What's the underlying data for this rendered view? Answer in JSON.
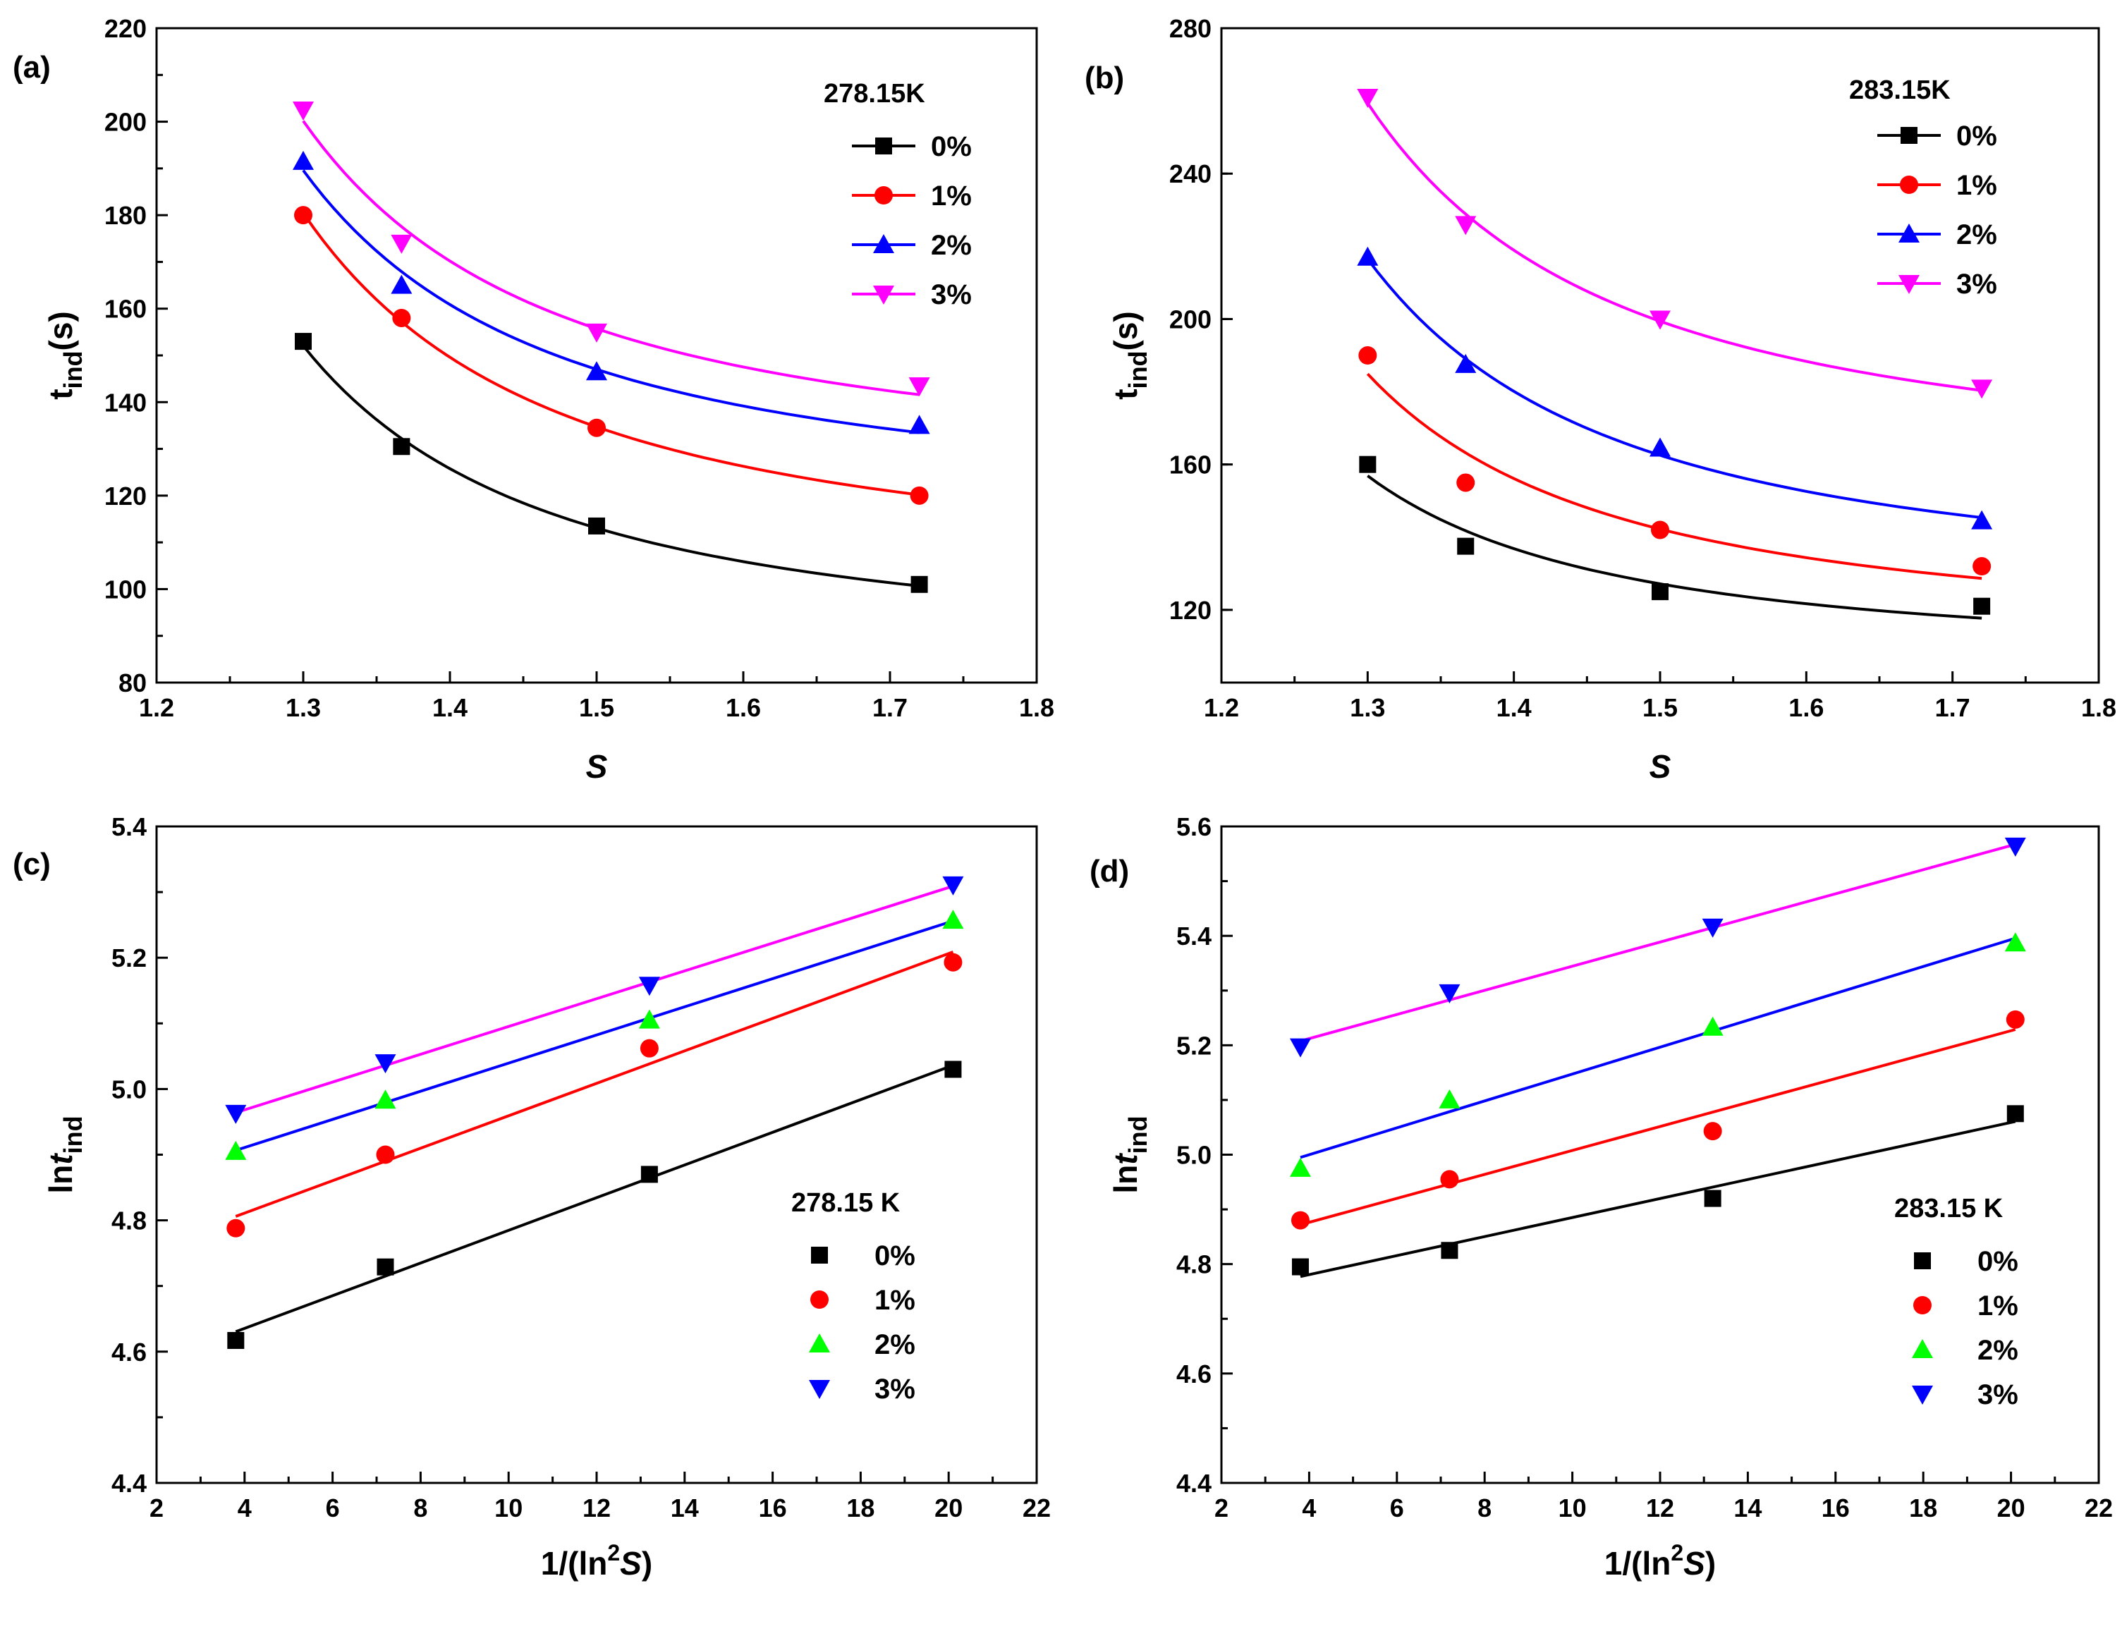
{
  "figure": {
    "colors": {
      "0%": "#000000",
      "1%": "#ff0000",
      "2%": "#0000ff",
      "3%": "#ff00ff"
    },
    "colors_scatter": {
      "0%": "#000000",
      "1%": "#ff0000",
      "2%": "#00ff00",
      "3%": "#0000ff"
    }
  },
  "chart_data": [
    {
      "panel": "(a)",
      "type": "scatter",
      "xlabel": "S",
      "ylabel": "t_ind(s)",
      "xlim": [
        1.2,
        1.8
      ],
      "ylim": [
        80,
        220
      ],
      "xticks": [
        "1.2",
        "1.3",
        "1.4",
        "1.5",
        "1.6",
        "1.7",
        "1.8"
      ],
      "yticks": [
        "80",
        "100",
        "120",
        "140",
        "160",
        "180",
        "200",
        "220"
      ],
      "legend_title": "278.15K",
      "legend_position": "top-right",
      "fit": "curve",
      "series": [
        {
          "name": "0%",
          "marker": "square",
          "x": [
            1.3,
            1.367,
            1.5,
            1.72
          ],
          "y": [
            153,
            130.5,
            113.5,
            101
          ]
        },
        {
          "name": "1%",
          "marker": "circle",
          "x": [
            1.3,
            1.367,
            1.5,
            1.72
          ],
          "y": [
            180,
            158,
            134.5,
            120
          ]
        },
        {
          "name": "2%",
          "marker": "triangle-up",
          "x": [
            1.3,
            1.367,
            1.5,
            1.72
          ],
          "y": [
            191.5,
            165,
            146.5,
            135
          ]
        },
        {
          "name": "3%",
          "marker": "triangle-down",
          "x": [
            1.3,
            1.367,
            1.5,
            1.72
          ],
          "y": [
            202.5,
            174,
            155,
            143.5
          ]
        }
      ]
    },
    {
      "panel": "(b)",
      "type": "scatter",
      "xlabel": "S",
      "ylabel": "t_ind(s)",
      "xlim": [
        1.2,
        1.8
      ],
      "ylim": [
        100,
        280
      ],
      "xticks": [
        "1.2",
        "1.3",
        "1.4",
        "1.5",
        "1.6",
        "1.7",
        "1.8"
      ],
      "yticks": [
        "120",
        "160",
        "200",
        "240",
        "280"
      ],
      "legend_title": "283.15K",
      "legend_position": "top-right",
      "fit": "curve",
      "series": [
        {
          "name": "0%",
          "marker": "square",
          "x": [
            1.3,
            1.367,
            1.5,
            1.72
          ],
          "y": [
            160,
            137.5,
            125,
            121
          ]
        },
        {
          "name": "1%",
          "marker": "circle",
          "x": [
            1.3,
            1.367,
            1.5,
            1.72
          ],
          "y": [
            190,
            155,
            142,
            132
          ]
        },
        {
          "name": "2%",
          "marker": "triangle-up",
          "x": [
            1.3,
            1.367,
            1.5,
            1.72
          ],
          "y": [
            217,
            187.5,
            164.5,
            144.5
          ]
        },
        {
          "name": "3%",
          "marker": "triangle-down",
          "x": [
            1.3,
            1.367,
            1.5,
            1.72
          ],
          "y": [
            261,
            226,
            200,
            181
          ]
        }
      ]
    },
    {
      "panel": "(c)",
      "type": "scatter",
      "xlabel": "1/(ln²S)",
      "ylabel": "ln t_ind",
      "xlim": [
        2,
        22
      ],
      "ylim": [
        4.4,
        5.4
      ],
      "xticks": [
        "2",
        "4",
        "6",
        "8",
        "10",
        "12",
        "14",
        "16",
        "18",
        "20",
        "22"
      ],
      "yticks": [
        "4.4",
        "4.6",
        "4.8",
        "5.0",
        "5.2",
        "5.4"
      ],
      "legend_title": "278.15 K",
      "legend_position": "bottom-right",
      "fit": "linear",
      "series": [
        {
          "name": "0%",
          "marker": "square",
          "x": [
            3.8,
            7.2,
            13.2,
            20.1
          ],
          "y": [
            4.617,
            4.729,
            4.87,
            5.03
          ]
        },
        {
          "name": "1%",
          "marker": "circle",
          "x": [
            3.8,
            7.2,
            13.2,
            20.1
          ],
          "y": [
            4.788,
            4.9,
            5.062,
            5.193
          ]
        },
        {
          "name": "2%",
          "marker": "triangle-up",
          "x": [
            3.8,
            7.2,
            13.2,
            20.1
          ],
          "y": [
            4.905,
            4.983,
            5.105,
            5.257
          ]
        },
        {
          "name": "3%",
          "marker": "triangle-down",
          "x": [
            3.8,
            7.2,
            13.2,
            20.1
          ],
          "y": [
            4.963,
            5.04,
            5.158,
            5.311
          ]
        }
      ]
    },
    {
      "panel": "(d)",
      "type": "scatter",
      "xlabel": "1/(ln²S)",
      "ylabel": "ln t_ind",
      "xlim": [
        2,
        22
      ],
      "ylim": [
        4.4,
        5.6
      ],
      "xticks": [
        "2",
        "4",
        "6",
        "8",
        "10",
        "12",
        "14",
        "16",
        "18",
        "20",
        "22"
      ],
      "yticks": [
        "4.4",
        "4.6",
        "4.8",
        "5.0",
        "5.2",
        "5.4",
        "5.6"
      ],
      "legend_title": "283.15 K",
      "legend_position": "bottom-right",
      "fit": "linear",
      "series": [
        {
          "name": "0%",
          "marker": "square",
          "x": [
            3.8,
            7.2,
            13.2,
            20.1
          ],
          "y": [
            4.795,
            4.825,
            4.92,
            5.075
          ]
        },
        {
          "name": "1%",
          "marker": "circle",
          "x": [
            3.8,
            7.2,
            13.2,
            20.1
          ],
          "y": [
            4.88,
            4.955,
            5.043,
            5.247
          ]
        },
        {
          "name": "2%",
          "marker": "triangle-up",
          "x": [
            3.8,
            7.2,
            13.2,
            20.1
          ],
          "y": [
            4.975,
            5.1,
            5.233,
            5.387
          ]
        },
        {
          "name": "3%",
          "marker": "triangle-down",
          "x": [
            3.8,
            7.2,
            13.2,
            20.1
          ],
          "y": [
            5.197,
            5.296,
            5.416,
            5.564
          ]
        }
      ]
    }
  ]
}
